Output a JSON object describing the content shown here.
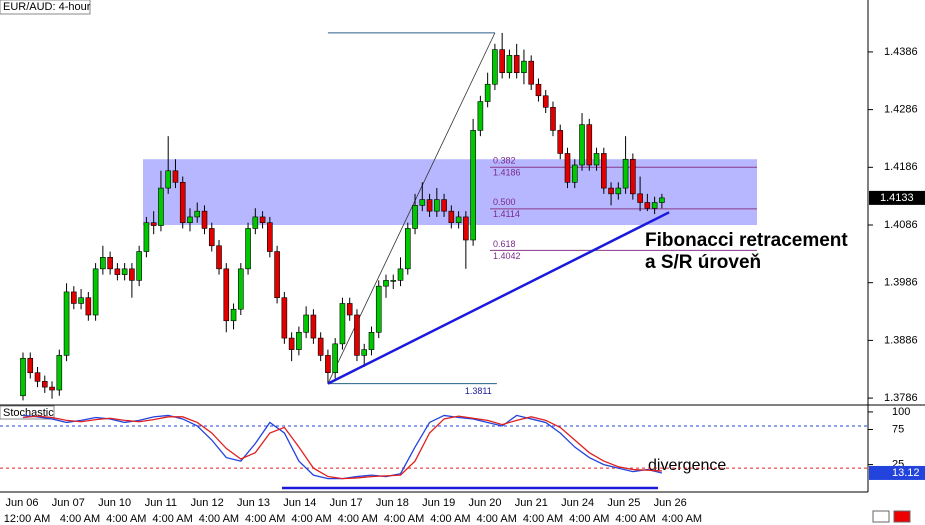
{
  "chart_data": [
    {
      "type": "candlestick",
      "title": "EUR/AUD: 4-hour",
      "candles": [
        [
          1.379,
          1.3865,
          1.3782,
          1.3855
        ],
        [
          1.3855,
          1.3865,
          1.382,
          1.383
        ],
        [
          1.383,
          1.384,
          1.3805,
          1.3815
        ],
        [
          1.3815,
          1.3825,
          1.3795,
          1.3805
        ],
        [
          1.3805,
          1.3815,
          1.3785,
          1.38
        ],
        [
          1.38,
          1.387,
          1.379,
          1.386
        ],
        [
          1.386,
          1.3985,
          1.385,
          1.397
        ],
        [
          1.397,
          1.398,
          1.394,
          1.395
        ],
        [
          1.395,
          1.3975,
          1.394,
          1.396
        ],
        [
          1.396,
          1.397,
          1.392,
          1.393
        ],
        [
          1.393,
          1.402,
          1.392,
          1.401
        ],
        [
          1.401,
          1.405,
          1.4,
          1.403
        ],
        [
          1.403,
          1.404,
          1.4,
          1.401
        ],
        [
          1.401,
          1.402,
          1.399,
          1.4
        ],
        [
          1.4,
          1.402,
          1.399,
          1.401
        ],
        [
          1.401,
          1.402,
          1.396,
          1.399
        ],
        [
          1.399,
          1.405,
          1.398,
          1.404
        ],
        [
          1.404,
          1.41,
          1.403,
          1.409
        ],
        [
          1.409,
          1.411,
          1.407,
          1.4085
        ],
        [
          1.4085,
          1.418,
          1.4075,
          1.415
        ],
        [
          1.415,
          1.424,
          1.414,
          1.418
        ],
        [
          1.418,
          1.42,
          1.415,
          1.416
        ],
        [
          1.416,
          1.417,
          1.408,
          1.409
        ],
        [
          1.409,
          1.4115,
          1.4075,
          1.41
        ],
        [
          1.41,
          1.4125,
          1.409,
          1.411
        ],
        [
          1.411,
          1.412,
          1.407,
          1.408
        ],
        [
          1.408,
          1.409,
          1.404,
          1.405
        ],
        [
          1.405,
          1.406,
          1.4,
          1.401
        ],
        [
          1.401,
          1.402,
          1.39,
          1.392
        ],
        [
          1.392,
          1.395,
          1.3905,
          1.394
        ],
        [
          1.394,
          1.402,
          1.393,
          1.401
        ],
        [
          1.401,
          1.409,
          1.4,
          1.408
        ],
        [
          1.408,
          1.4115,
          1.407,
          1.41
        ],
        [
          1.41,
          1.411,
          1.408,
          1.409
        ],
        [
          1.409,
          1.41,
          1.403,
          1.404
        ],
        [
          1.404,
          1.405,
          1.395,
          1.396
        ],
        [
          1.396,
          1.397,
          1.388,
          1.389
        ],
        [
          1.389,
          1.39,
          1.385,
          1.387
        ],
        [
          1.387,
          1.391,
          1.386,
          1.39
        ],
        [
          1.39,
          1.3945,
          1.389,
          1.393
        ],
        [
          1.393,
          1.394,
          1.388,
          1.389
        ],
        [
          1.389,
          1.39,
          1.385,
          1.386
        ],
        [
          1.386,
          1.387,
          1.3811,
          1.383
        ],
        [
          1.383,
          1.389,
          1.382,
          1.388
        ],
        [
          1.388,
          1.396,
          1.387,
          1.395
        ],
        [
          1.395,
          1.396,
          1.392,
          1.393
        ],
        [
          1.393,
          1.394,
          1.385,
          1.386
        ],
        [
          1.386,
          1.388,
          1.384,
          1.387
        ],
        [
          1.387,
          1.391,
          1.386,
          1.39
        ],
        [
          1.39,
          1.399,
          1.389,
          1.398
        ],
        [
          1.398,
          1.4,
          1.396,
          1.399
        ],
        [
          1.399,
          1.4,
          1.3975,
          1.399
        ],
        [
          1.399,
          1.403,
          1.398,
          1.401
        ],
        [
          1.401,
          1.409,
          1.4,
          1.408
        ],
        [
          1.408,
          1.414,
          1.407,
          1.412
        ],
        [
          1.412,
          1.416,
          1.411,
          1.413
        ],
        [
          1.413,
          1.414,
          1.41,
          1.411
        ],
        [
          1.411,
          1.415,
          1.41,
          1.413
        ],
        [
          1.413,
          1.414,
          1.41,
          1.411
        ],
        [
          1.411,
          1.412,
          1.408,
          1.409
        ],
        [
          1.409,
          1.411,
          1.408,
          1.41
        ],
        [
          1.41,
          1.411,
          1.401,
          1.406
        ],
        [
          1.406,
          1.427,
          1.405,
          1.425
        ],
        [
          1.425,
          1.431,
          1.424,
          1.43
        ],
        [
          1.43,
          1.435,
          1.429,
          1.433
        ],
        [
          1.433,
          1.44,
          1.432,
          1.439
        ],
        [
          1.439,
          1.4419,
          1.434,
          1.435
        ],
        [
          1.435,
          1.439,
          1.434,
          1.438
        ],
        [
          1.438,
          1.44,
          1.434,
          1.435
        ],
        [
          1.435,
          1.439,
          1.433,
          1.437
        ],
        [
          1.437,
          1.438,
          1.432,
          1.433
        ],
        [
          1.433,
          1.434,
          1.43,
          1.431
        ],
        [
          1.431,
          1.432,
          1.428,
          1.429
        ],
        [
          1.429,
          1.43,
          1.424,
          1.425
        ],
        [
          1.425,
          1.426,
          1.42,
          1.421
        ],
        [
          1.421,
          1.422,
          1.415,
          1.416
        ],
        [
          1.416,
          1.42,
          1.415,
          1.419
        ],
        [
          1.419,
          1.428,
          1.418,
          1.426
        ],
        [
          1.426,
          1.427,
          1.418,
          1.419
        ],
        [
          1.419,
          1.422,
          1.418,
          1.421
        ],
        [
          1.421,
          1.422,
          1.414,
          1.415
        ],
        [
          1.415,
          1.416,
          1.412,
          1.414
        ],
        [
          1.414,
          1.416,
          1.413,
          1.415
        ],
        [
          1.415,
          1.424,
          1.414,
          1.42
        ],
        [
          1.42,
          1.421,
          1.413,
          1.414
        ],
        [
          1.414,
          1.417,
          1.411,
          1.4125
        ],
        [
          1.4125,
          1.414,
          1.411,
          1.4115
        ],
        [
          1.4115,
          1.4135,
          1.4105,
          1.4125
        ],
        [
          1.4125,
          1.414,
          1.4115,
          1.4133
        ]
      ],
      "up_color": "#00c800",
      "down_color": "#e00000",
      "ylim": [
        1.3774,
        1.4476
      ],
      "yticks": [
        1.4386,
        1.4286,
        1.4186,
        1.4086,
        1.3986,
        1.3886,
        1.3786
      ],
      "last": 1.4133,
      "x_labels": [
        "Jun 06",
        "Jun 07",
        "Jun 10",
        "Jun 11",
        "Jun 12",
        "Jun 13",
        "Jun 14",
        "Jun 17",
        "Jun 18",
        "Jun 19",
        "Jun 20",
        "Jun 21",
        "Jun 24",
        "Jun 25",
        "Jun 26"
      ],
      "time_labels": [
        "12:00 AM",
        "4:00 AM",
        "4:00 AM",
        "4:00 AM",
        "4:00 AM",
        "4:00 AM",
        "4:00 AM",
        "4:00 AM",
        "4:00 AM",
        "4:00 AM",
        "4:00 AM",
        "4:00 AM",
        "4:00 AM",
        "4:00 AM",
        "4:00 AM"
      ],
      "zone": [
        1.4086,
        1.42
      ],
      "zone_color": "#aaaaff",
      "swing": {
        "x": [
          42,
          65
        ],
        "low": 1.3811,
        "high": 1.4419
      },
      "fib_levels": [
        {
          "ratio": "0.382",
          "price": 1.4186
        },
        {
          "ratio": "0.500",
          "price": 1.4114
        },
        {
          "ratio": "0.618",
          "price": 1.4042
        }
      ],
      "trendline": {
        "x": [
          42,
          89
        ],
        "y": [
          1.3811,
          1.4108
        ],
        "color": "#1a1adc"
      },
      "annotations": [
        "Fibonacci retracement",
        "a S/R úroveň"
      ]
    },
    {
      "type": "line",
      "title": "Stochastic",
      "x": [
        0,
        2,
        4,
        6,
        8,
        10,
        12,
        14,
        16,
        18,
        20,
        22,
        24,
        26,
        28,
        30,
        32,
        34,
        36,
        38,
        40,
        42,
        44,
        46,
        48,
        50,
        52,
        54,
        56,
        58,
        60,
        62,
        64,
        66,
        68,
        70,
        72,
        74,
        76,
        78,
        80,
        82,
        84,
        86,
        88
      ],
      "series": [
        {
          "color": "#2244dd",
          "values": [
            95,
            93,
            90,
            85,
            88,
            92,
            90,
            85,
            88,
            93,
            95,
            90,
            80,
            60,
            35,
            30,
            55,
            85,
            70,
            30,
            10,
            5,
            5,
            8,
            10,
            8,
            12,
            50,
            85,
            95,
            92,
            90,
            85,
            80,
            95,
            90,
            85,
            70,
            50,
            35,
            25,
            20,
            15,
            18,
            13.12
          ]
        },
        {
          "color": "#e02020",
          "values": [
            92,
            94,
            92,
            88,
            86,
            89,
            91,
            88,
            86,
            89,
            93,
            93,
            85,
            70,
            48,
            33,
            42,
            70,
            78,
            50,
            20,
            8,
            5,
            6,
            8,
            9,
            10,
            30,
            70,
            90,
            94,
            91,
            88,
            82,
            88,
            93,
            88,
            78,
            60,
            42,
            30,
            22,
            18,
            17,
            16
          ]
        }
      ],
      "ylim": [
        -14,
        107
      ],
      "yticks": [
        100,
        75,
        25
      ],
      "levels": [
        {
          "value": 80,
          "color": "#2244dd"
        },
        {
          "value": 20,
          "color": "#e02020"
        }
      ],
      "annotation": "divergence"
    }
  ]
}
